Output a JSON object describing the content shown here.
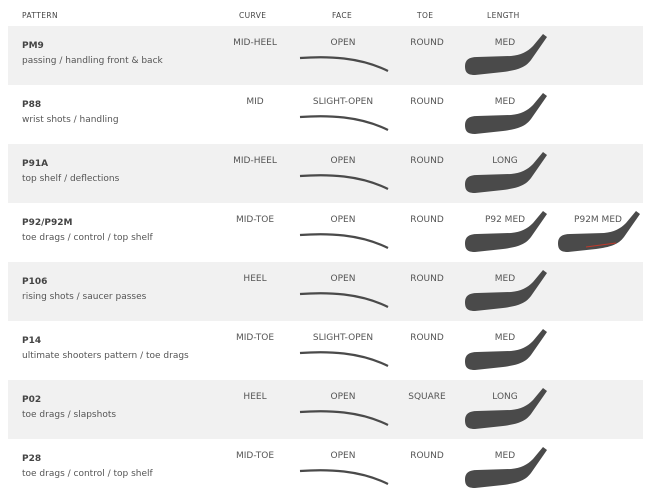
{
  "headers": {
    "pattern": "PATTERN",
    "curve": "CURVE",
    "face": "FACE",
    "toe": "TOE",
    "length": "LENGTH"
  },
  "colors": {
    "band": "#f1f1f1",
    "blade": "#4a4a4a",
    "accent": "#c0392b"
  },
  "rows": [
    {
      "name": "PM9",
      "desc": "passing / handling front & back",
      "curve": "MID-HEEL",
      "face": "OPEN",
      "toe": "ROUND",
      "length": "MED"
    },
    {
      "name": "P88",
      "desc": "wrist shots / handling",
      "curve": "MID",
      "face": "SLIGHT-OPEN",
      "toe": "ROUND",
      "length": "MED"
    },
    {
      "name": "P91A",
      "desc": "top shelf / deflections",
      "curve": "MID-HEEL",
      "face": "OPEN",
      "toe": "ROUND",
      "length": "LONG"
    },
    {
      "name": "P92/P92M",
      "desc": "toe drags / control / top shelf",
      "curve": "MID-TOE",
      "face": "OPEN",
      "toe": "ROUND",
      "length": "P92 MED",
      "length2": "P92M MED"
    },
    {
      "name": "P106",
      "desc": "rising shots / saucer passes",
      "curve": "HEEL",
      "face": "OPEN",
      "toe": "ROUND",
      "length": "MED"
    },
    {
      "name": "P14",
      "desc": "ultimate shooters pattern / toe drags",
      "curve": "MID-TOE",
      "face": "SLIGHT-OPEN",
      "toe": "ROUND",
      "length": "MED"
    },
    {
      "name": "P02",
      "desc": "toe drags / slapshots",
      "curve": "HEEL",
      "face": "OPEN",
      "toe": "SQUARE",
      "length": "LONG"
    },
    {
      "name": "P28",
      "desc": "toe drags / control / top shelf",
      "curve": "MID-TOE",
      "face": "OPEN",
      "toe": "ROUND",
      "length": "MED"
    }
  ]
}
